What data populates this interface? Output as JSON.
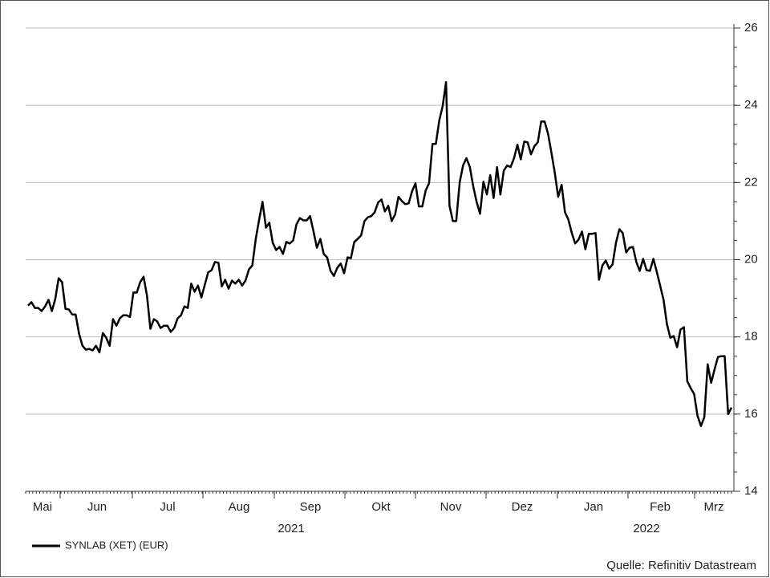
{
  "chart_data": {
    "type": "line",
    "months": [
      "Mai",
      "Jun",
      "Jul",
      "Aug",
      "Sep",
      "Okt",
      "Nov",
      "Dez",
      "Jan",
      "Feb",
      "Mrz"
    ],
    "years": [
      "2021",
      "2022"
    ],
    "source": "Quelle: Refinitiv Datastream",
    "ylim": [
      14,
      26
    ],
    "yticks": [
      14,
      16,
      18,
      20,
      22,
      24,
      26
    ],
    "grid": true,
    "y_axis_side": "right",
    "legend": "bottom-left",
    "series": [
      {
        "name": "SYNLAB (XET) (EUR)",
        "color": "#000000",
        "values": [
          18.81,
          18.9,
          18.75,
          18.75,
          18.67,
          18.79,
          18.96,
          18.67,
          18.98,
          19.52,
          19.42,
          18.73,
          18.71,
          18.58,
          18.58,
          18.08,
          17.77,
          17.67,
          17.69,
          17.65,
          17.77,
          17.6,
          18.1,
          17.98,
          17.77,
          18.46,
          18.29,
          18.48,
          18.56,
          18.56,
          18.52,
          19.15,
          19.15,
          19.42,
          19.56,
          19.06,
          18.21,
          18.46,
          18.4,
          18.23,
          18.29,
          18.29,
          18.13,
          18.23,
          18.48,
          18.56,
          18.79,
          18.75,
          19.38,
          19.17,
          19.33,
          19.02,
          19.35,
          19.67,
          19.73,
          19.94,
          19.92,
          19.31,
          19.48,
          19.25,
          19.46,
          19.38,
          19.48,
          19.33,
          19.46,
          19.75,
          19.85,
          20.54,
          21.04,
          21.5,
          20.83,
          20.96,
          20.44,
          20.25,
          20.33,
          20.15,
          20.46,
          20.42,
          20.5,
          20.92,
          21.08,
          21.02,
          21.02,
          21.13,
          20.73,
          20.31,
          20.54,
          20.15,
          20.06,
          19.71,
          19.58,
          19.79,
          19.9,
          19.65,
          20.06,
          20.04,
          20.46,
          20.54,
          20.63,
          21.0,
          21.1,
          21.13,
          21.23,
          21.48,
          21.56,
          21.25,
          21.4,
          21.0,
          21.17,
          21.63,
          21.52,
          21.44,
          21.46,
          21.77,
          21.98,
          21.38,
          21.38,
          21.79,
          21.98,
          23.0,
          23.0,
          23.6,
          23.98,
          24.6,
          21.4,
          21.0,
          21.0,
          22.0,
          22.44,
          22.63,
          22.4,
          21.9,
          21.5,
          21.19,
          22.02,
          21.69,
          22.19,
          21.6,
          22.4,
          21.69,
          22.31,
          22.44,
          22.4,
          22.63,
          22.98,
          22.6,
          23.06,
          23.04,
          22.73,
          22.94,
          23.04,
          23.58,
          23.58,
          23.27,
          22.77,
          22.25,
          21.63,
          21.94,
          21.23,
          21.04,
          20.69,
          20.42,
          20.52,
          20.73,
          20.27,
          20.67,
          20.67,
          20.69,
          19.48,
          19.85,
          19.98,
          19.77,
          19.88,
          20.44,
          20.79,
          20.69,
          20.19,
          20.31,
          20.33,
          19.94,
          19.71,
          20.02,
          19.73,
          19.71,
          20.02,
          19.69,
          19.33,
          18.96,
          18.33,
          17.98,
          18.02,
          17.73,
          18.19,
          18.25,
          16.85,
          16.67,
          16.52,
          15.96,
          15.69,
          15.92,
          17.29,
          16.81,
          17.15,
          17.48,
          17.5,
          17.5,
          16.0,
          16.17
        ]
      }
    ]
  }
}
